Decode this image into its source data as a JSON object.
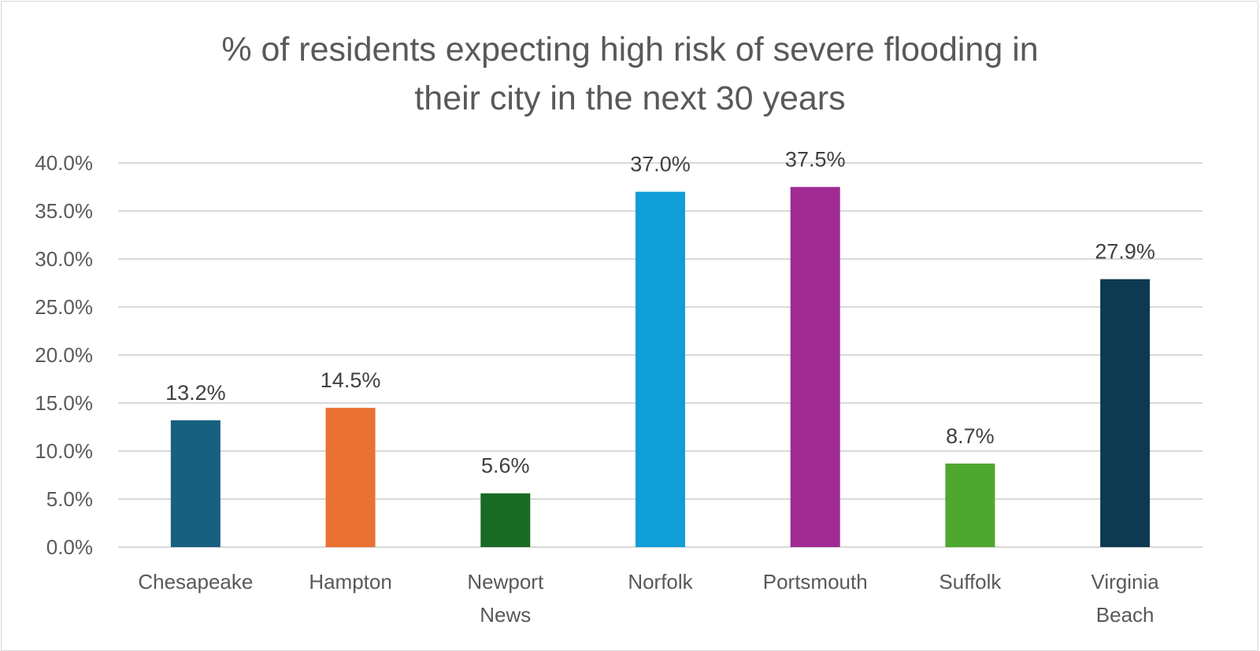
{
  "chart_data": {
    "type": "bar",
    "title": "% of residents expecting high risk of severe flooding in their city in the next 30 years",
    "title_lines": [
      "% of residents expecting high risk of severe flooding in",
      "their city in the next 30 years"
    ],
    "xlabel": "",
    "ylabel": "",
    "categories": [
      "Chesapeake",
      "Hampton",
      "Newport News",
      "Norfolk",
      "Portsmouth",
      "Suffolk",
      "Virginia Beach"
    ],
    "category_lines": [
      [
        "Chesapeake"
      ],
      [
        "Hampton"
      ],
      [
        "Newport",
        "News"
      ],
      [
        "Norfolk"
      ],
      [
        "Portsmouth"
      ],
      [
        "Suffolk"
      ],
      [
        "Virginia",
        "Beach"
      ]
    ],
    "values": [
      13.2,
      14.5,
      5.6,
      37.0,
      37.5,
      8.7,
      27.9
    ],
    "data_labels": [
      "13.2%",
      "14.5%",
      "5.6%",
      "37.0%",
      "37.5%",
      "8.7%",
      "27.9%"
    ],
    "colors": [
      "#17607f",
      "#e97132",
      "#196b24",
      "#0f9ed5",
      "#a02b93",
      "#4ea72e",
      "#0e3a51"
    ],
    "ylim": [
      0,
      40
    ],
    "yticks": [
      0,
      5,
      10,
      15,
      20,
      25,
      30,
      35,
      40
    ],
    "ytick_labels": [
      "0.0%",
      "5.0%",
      "10.0%",
      "15.0%",
      "20.0%",
      "25.0%",
      "30.0%",
      "35.0%",
      "40.0%"
    ],
    "grid": true,
    "legend": "none"
  }
}
